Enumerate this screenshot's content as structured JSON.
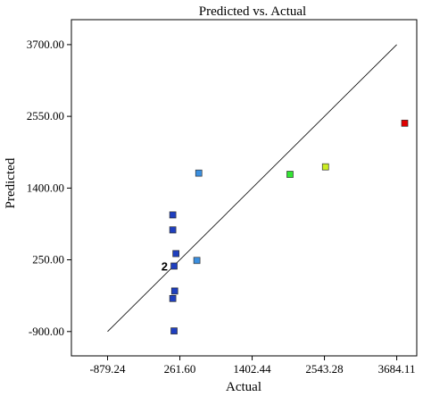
{
  "chart_data": {
    "type": "scatter",
    "title": "Predicted vs. Actual",
    "xlabel": "Actual",
    "ylabel": "Predicted",
    "xlim": [
      -1450,
      4000
    ],
    "ylim": [
      -1290,
      4100
    ],
    "x_ticks": [
      -879.24,
      261.6,
      1402.44,
      2543.28,
      3684.11
    ],
    "x_tick_labels": [
      "-879.24",
      "261.60",
      "1402.44",
      "2543.28",
      "3684.11"
    ],
    "y_ticks": [
      -900.0,
      250.0,
      1400.0,
      2550.0,
      3700.0
    ],
    "y_tick_labels": [
      "-900.00",
      "250.00",
      "1400.00",
      "2550.00",
      "3700.00"
    ],
    "reference_line": {
      "x": [
        -879.24,
        3684.11
      ],
      "y": [
        -900.0,
        3700.0
      ]
    },
    "points": [
      {
        "x": 150,
        "y": 970,
        "color": "#1f3fbf"
      },
      {
        "x": 150,
        "y": 730,
        "color": "#1f3fbf"
      },
      {
        "x": 200,
        "y": 350,
        "color": "#1f3fbf"
      },
      {
        "x": 170,
        "y": 150,
        "color": "#1f3fbf"
      },
      {
        "x": 180,
        "y": -250,
        "color": "#1f3fbf"
      },
      {
        "x": 150,
        "y": -370,
        "color": "#1f3fbf"
      },
      {
        "x": 170,
        "y": -890,
        "color": "#1f3fbf"
      },
      {
        "x": 560,
        "y": 1640,
        "color": "#3a8fe0"
      },
      {
        "x": 530,
        "y": 240,
        "color": "#3a8fe0"
      },
      {
        "x": 2000,
        "y": 1620,
        "color": "#33e533"
      },
      {
        "x": 2560,
        "y": 1740,
        "color": "#ccee22"
      },
      {
        "x": 3810,
        "y": 2440,
        "color": "#e00000"
      }
    ],
    "annotations": [
      {
        "text": "2",
        "x": 170,
        "y": 150
      }
    ]
  }
}
